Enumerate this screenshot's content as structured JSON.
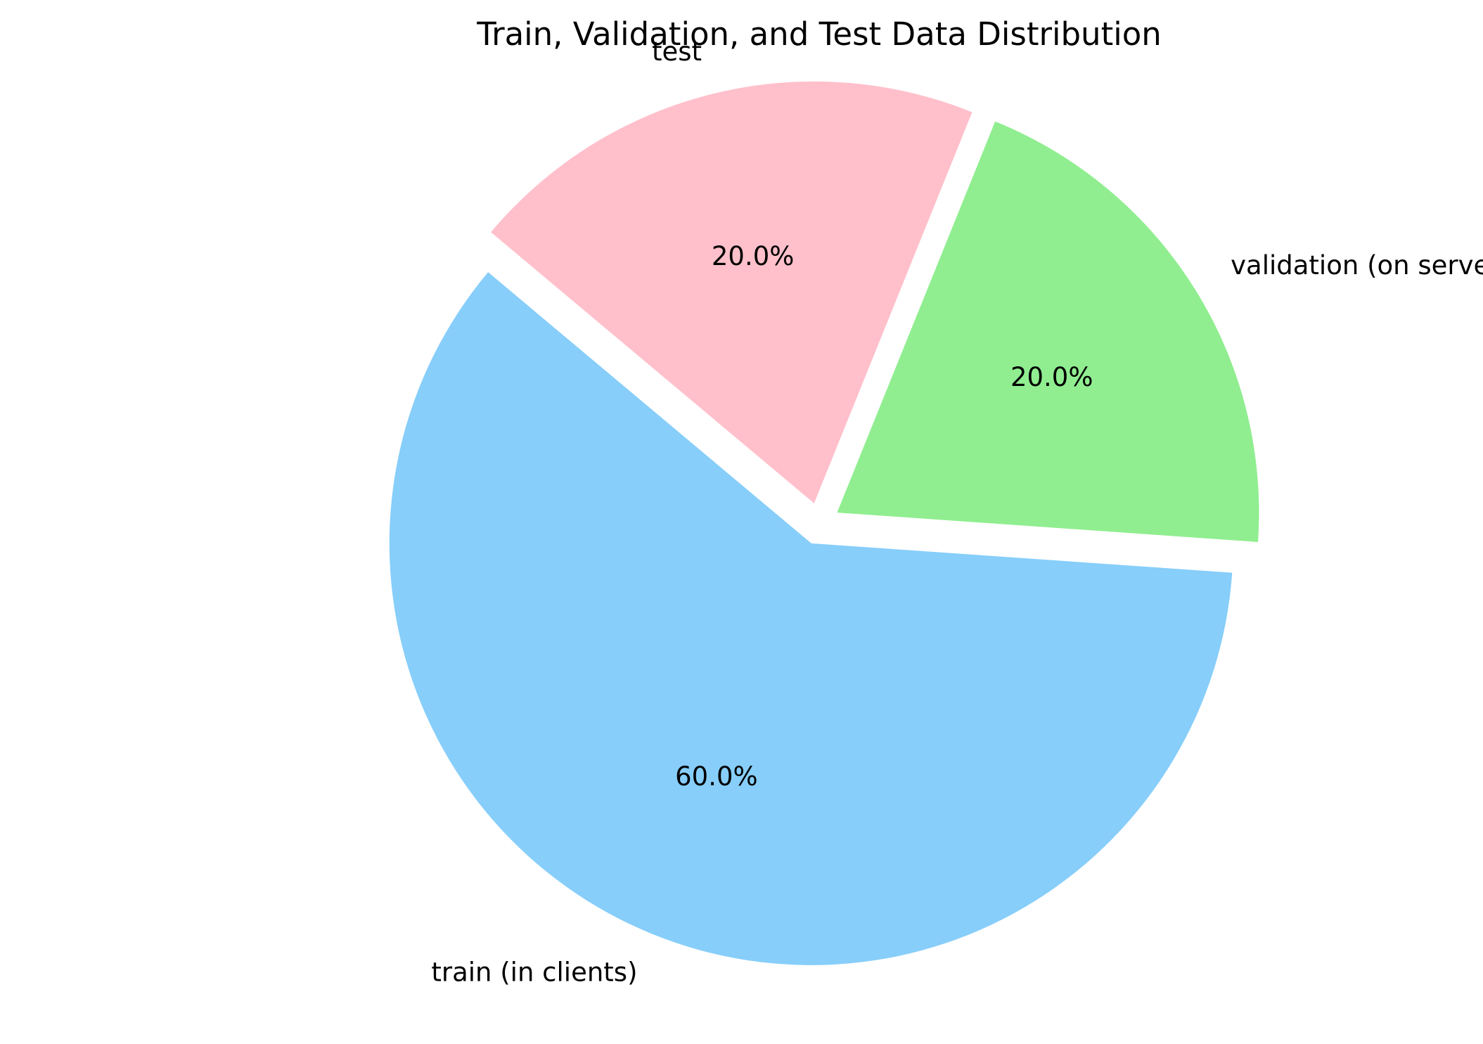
{
  "chart_data": {
    "type": "pie",
    "title": "Train, Validation, and Test Data Distribution",
    "slices": [
      {
        "label": "train (in clients)",
        "value": 60.0,
        "pct_label": "60.0%",
        "color": "#87CEFA",
        "exploded": true
      },
      {
        "label": "validation (on server)",
        "value": 20.0,
        "pct_label": "20.0%",
        "color": "#90EE90",
        "exploded": true
      },
      {
        "label": "test",
        "value": 20.0,
        "pct_label": "20.0%",
        "color": "#FFC0CB",
        "exploded": true
      }
    ],
    "start_angle_deg": 140,
    "direction": "counterclockwise",
    "legend": "none"
  }
}
